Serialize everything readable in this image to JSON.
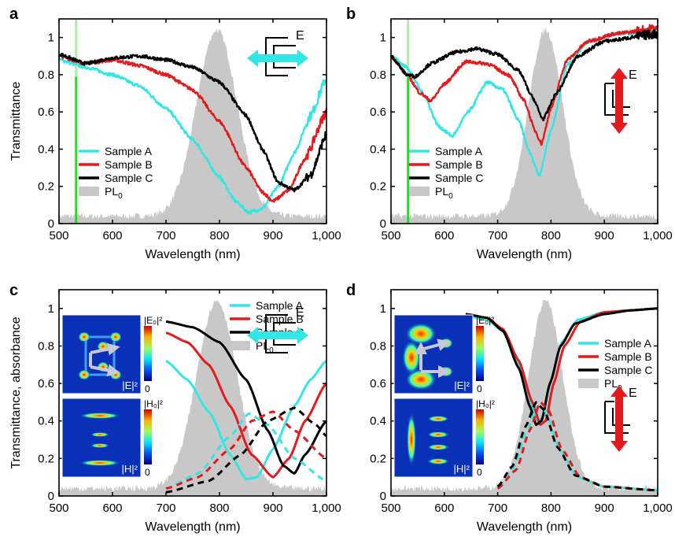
{
  "chart_data": [
    {
      "panel": "a",
      "type": "line",
      "xlabel": "Wavelength (nm)",
      "ylabel": "Transmittance",
      "xlim": [
        500,
        1000
      ],
      "ylim": [
        0,
        1.1
      ],
      "xticks": [
        "500",
        "600",
        "700",
        "800",
        "900",
        "1,000"
      ],
      "yticks": [
        "0",
        "0.2",
        "0.4",
        "0.6",
        "0.8",
        "1"
      ],
      "excitation_line_nm": 532,
      "polarization": "horizontal",
      "field_label": "E",
      "legend": [
        "Sample A",
        "Sample B",
        "Sample C",
        "PL0"
      ],
      "series": [
        {
          "name": "Sample A",
          "color": "#33e6e6",
          "noisy": true,
          "x": [
            500,
            550,
            600,
            650,
            700,
            750,
            800,
            830,
            855,
            880,
            910,
            940,
            970,
            1000
          ],
          "y": [
            0.88,
            0.84,
            0.8,
            0.74,
            0.62,
            0.45,
            0.25,
            0.12,
            0.06,
            0.08,
            0.2,
            0.38,
            0.58,
            0.78
          ]
        },
        {
          "name": "Sample B",
          "color": "#e41a1c",
          "noisy": true,
          "x": [
            500,
            550,
            600,
            650,
            700,
            750,
            800,
            850,
            880,
            900,
            930,
            960,
            1000
          ],
          "y": [
            0.9,
            0.86,
            0.88,
            0.85,
            0.8,
            0.72,
            0.55,
            0.3,
            0.17,
            0.12,
            0.18,
            0.35,
            0.6
          ]
        },
        {
          "name": "Sample C",
          "color": "#000000",
          "noisy": true,
          "x": [
            500,
            550,
            600,
            650,
            700,
            750,
            800,
            850,
            880,
            910,
            940,
            970,
            1000
          ],
          "y": [
            0.91,
            0.86,
            0.89,
            0.9,
            0.88,
            0.84,
            0.76,
            0.58,
            0.4,
            0.22,
            0.18,
            0.26,
            0.48
          ]
        }
      ],
      "pl": {
        "name": "PL0",
        "color": "#c8c8c8",
        "center": 795,
        "width": 38,
        "peak": 1.0,
        "baseline": 0.04
      }
    },
    {
      "panel": "b",
      "type": "line",
      "xlabel": "Wavelength (nm)",
      "ylabel": "",
      "xlim": [
        500,
        1000
      ],
      "ylim": [
        0,
        1.1
      ],
      "xticks": [
        "500",
        "600",
        "700",
        "800",
        "900",
        "1,000"
      ],
      "yticks": [
        "0",
        "0.2",
        "0.4",
        "0.6",
        "0.8",
        "1"
      ],
      "excitation_line_nm": 532,
      "polarization": "vertical",
      "field_label": "E",
      "legend": [
        "Sample A",
        "Sample B",
        "Sample C",
        "PL0"
      ],
      "series": [
        {
          "name": "Sample A",
          "color": "#33e6e6",
          "noisy": true,
          "x": [
            500,
            530,
            560,
            590,
            615,
            645,
            680,
            710,
            740,
            760,
            778,
            800,
            830,
            870,
            920,
            1000
          ],
          "y": [
            0.9,
            0.84,
            0.7,
            0.52,
            0.47,
            0.6,
            0.76,
            0.72,
            0.55,
            0.38,
            0.26,
            0.5,
            0.85,
            0.98,
            1.02,
            1.03
          ]
        },
        {
          "name": "Sample B",
          "color": "#e41a1c",
          "noisy": true,
          "x": [
            500,
            530,
            555,
            575,
            600,
            640,
            680,
            720,
            750,
            770,
            782,
            800,
            830,
            870,
            920,
            1000
          ],
          "y": [
            0.9,
            0.8,
            0.7,
            0.66,
            0.75,
            0.87,
            0.86,
            0.8,
            0.66,
            0.5,
            0.43,
            0.62,
            0.88,
            0.98,
            1.02,
            1.05
          ]
        },
        {
          "name": "Sample C",
          "color": "#000000",
          "noisy": true,
          "x": [
            500,
            530,
            545,
            575,
            620,
            660,
            700,
            740,
            765,
            785,
            810,
            850,
            900,
            1000
          ],
          "y": [
            0.9,
            0.8,
            0.79,
            0.86,
            0.92,
            0.94,
            0.91,
            0.82,
            0.68,
            0.56,
            0.7,
            0.9,
            0.98,
            1.02
          ]
        }
      ],
      "pl": {
        "name": "PL0",
        "color": "#c8c8c8",
        "center": 790,
        "width": 32,
        "peak": 1.0,
        "baseline": 0.04
      }
    },
    {
      "panel": "c",
      "type": "line",
      "xlabel": "Wavelength (nm)",
      "ylabel": "Transmittance, absorbance",
      "xlim": [
        500,
        1000
      ],
      "ylim": [
        0,
        1.1
      ],
      "xticks": [
        "500",
        "600",
        "700",
        "800",
        "900",
        "1,000"
      ],
      "yticks": [
        "0",
        "0.2",
        "0.4",
        "0.6",
        "0.8",
        "1"
      ],
      "polarization": "horizontal",
      "field_label": "E",
      "legend": [
        "Sample A",
        "Sample B",
        "Sample C",
        "PL0"
      ],
      "insets": {
        "top_label": "|E|²",
        "top_scale": "|E₀|²",
        "bottom_label": "|H|²",
        "bottom_scale": "|H₀|²",
        "scale_min": "0"
      },
      "series": [
        {
          "name": "Sample A",
          "color": "#33e6e6",
          "style": "solid",
          "x": [
            700,
            740,
            780,
            820,
            850,
            870,
            900,
            940,
            970,
            1000
          ],
          "y": [
            0.72,
            0.62,
            0.45,
            0.22,
            0.09,
            0.1,
            0.25,
            0.48,
            0.62,
            0.72
          ]
        },
        {
          "name": "Sample B",
          "color": "#e41a1c",
          "style": "solid",
          "x": [
            700,
            740,
            780,
            820,
            860,
            900,
            930,
            960,
            1000
          ],
          "y": [
            0.87,
            0.82,
            0.7,
            0.48,
            0.22,
            0.1,
            0.2,
            0.4,
            0.6
          ]
        },
        {
          "name": "Sample C",
          "color": "#000000",
          "style": "solid",
          "x": [
            700,
            750,
            800,
            850,
            890,
            920,
            940,
            960,
            1000
          ],
          "y": [
            0.93,
            0.9,
            0.82,
            0.62,
            0.35,
            0.16,
            0.12,
            0.22,
            0.4
          ]
        },
        {
          "name": "Sample A absorbance",
          "color": "#33e6e6",
          "style": "dashed",
          "x": [
            700,
            760,
            820,
            855,
            890,
            940,
            1000
          ],
          "y": [
            0.04,
            0.12,
            0.32,
            0.44,
            0.38,
            0.2,
            0.08
          ]
        },
        {
          "name": "Sample B absorbance",
          "color": "#e41a1c",
          "style": "dashed",
          "x": [
            700,
            760,
            820,
            860,
            900,
            940,
            1000
          ],
          "y": [
            0.04,
            0.1,
            0.25,
            0.4,
            0.45,
            0.35,
            0.2
          ]
        },
        {
          "name": "Sample C absorbance",
          "color": "#000000",
          "style": "dashed",
          "x": [
            700,
            780,
            840,
            890,
            940,
            980,
            1000
          ],
          "y": [
            0.02,
            0.08,
            0.22,
            0.4,
            0.47,
            0.38,
            0.32
          ]
        }
      ],
      "pl": {
        "name": "PL0",
        "color": "#c8c8c8",
        "center": 795,
        "width": 38,
        "peak": 1.0,
        "baseline": 0.04
      }
    },
    {
      "panel": "d",
      "type": "line",
      "xlabel": "Wavelength (nm)",
      "ylabel": "",
      "xlim": [
        500,
        1000
      ],
      "ylim": [
        0,
        1.1
      ],
      "xticks": [
        "500",
        "600",
        "700",
        "800",
        "900",
        "1,000"
      ],
      "yticks": [
        "0",
        "0.2",
        "0.4",
        "0.6",
        "0.8",
        "1"
      ],
      "polarization": "vertical",
      "field_label": "E",
      "legend": [
        "Sample A",
        "Sample B",
        "Sample C",
        "PL0"
      ],
      "insets": {
        "top_label": "|E|²",
        "top_scale": "|E₀|²",
        "bottom_label": "|H|²",
        "bottom_scale": "|H₀|²",
        "scale_min": "0"
      },
      "series": [
        {
          "name": "Sample A",
          "color": "#33e6e6",
          "style": "solid",
          "x": [
            640,
            680,
            710,
            740,
            760,
            775,
            785,
            800,
            820,
            850,
            900,
            950,
            1000
          ],
          "y": [
            0.96,
            0.94,
            0.88,
            0.7,
            0.5,
            0.4,
            0.42,
            0.62,
            0.82,
            0.94,
            0.98,
            0.99,
            1.0
          ]
        },
        {
          "name": "Sample B",
          "color": "#e41a1c",
          "style": "solid",
          "x": [
            640,
            680,
            710,
            740,
            765,
            780,
            790,
            805,
            825,
            855,
            900,
            950,
            1000
          ],
          "y": [
            0.97,
            0.95,
            0.89,
            0.72,
            0.5,
            0.38,
            0.4,
            0.6,
            0.8,
            0.93,
            0.98,
            0.99,
            1.0
          ]
        },
        {
          "name": "Sample C",
          "color": "#000000",
          "style": "solid",
          "x": [
            640,
            680,
            710,
            740,
            760,
            772,
            782,
            798,
            818,
            845,
            900,
            950,
            1000
          ],
          "y": [
            0.97,
            0.95,
            0.88,
            0.68,
            0.48,
            0.38,
            0.4,
            0.6,
            0.8,
            0.92,
            0.97,
            0.99,
            1.0
          ]
        },
        {
          "name": "Sample A absorbance",
          "color": "#33e6e6",
          "style": "dashed",
          "x": [
            700,
            730,
            755,
            775,
            790,
            815,
            850,
            900,
            1000
          ],
          "y": [
            0.05,
            0.15,
            0.35,
            0.48,
            0.45,
            0.25,
            0.1,
            0.05,
            0.03
          ]
        },
        {
          "name": "Sample B absorbance",
          "color": "#e41a1c",
          "style": "dashed",
          "x": [
            700,
            735,
            760,
            780,
            795,
            820,
            855,
            900,
            1000
          ],
          "y": [
            0.04,
            0.14,
            0.35,
            0.5,
            0.46,
            0.25,
            0.1,
            0.05,
            0.03
          ]
        },
        {
          "name": "Sample C absorbance",
          "color": "#000000",
          "style": "dashed",
          "x": [
            700,
            728,
            752,
            772,
            787,
            812,
            845,
            900,
            1000
          ],
          "y": [
            0.05,
            0.16,
            0.37,
            0.5,
            0.46,
            0.26,
            0.11,
            0.05,
            0.03
          ]
        }
      ],
      "pl": {
        "name": "PL0",
        "color": "#c8c8c8",
        "center": 790,
        "width": 32,
        "peak": 1.0,
        "baseline": 0.04
      }
    }
  ]
}
